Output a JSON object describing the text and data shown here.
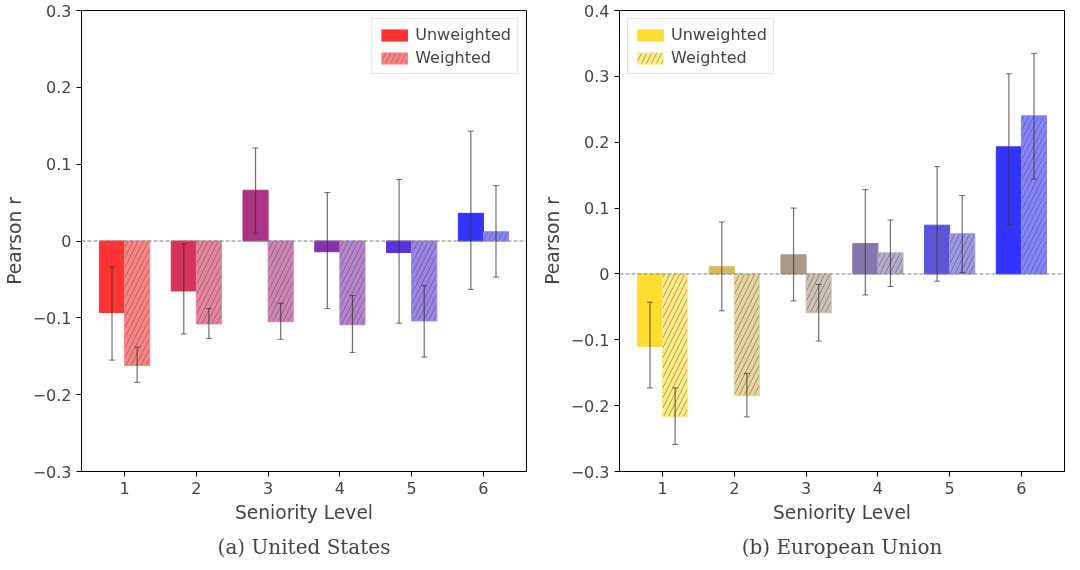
{
  "chart_data": [
    {
      "type": "bar",
      "xlabel": "Seniority Level",
      "ylabel": "Pearson r",
      "annotations": [
        "(a) United States"
      ],
      "categories": [
        "1",
        "2",
        "3",
        "4",
        "5",
        "6"
      ],
      "series": [
        {
          "name": "Unweighted",
          "colors": [
            "#ff3333",
            "#d6335c",
            "#ad3385",
            "#8533ad",
            "#5c33d6",
            "#3333ff"
          ],
          "values": [
            -0.093,
            -0.065,
            0.066,
            -0.014,
            -0.015,
            0.036
          ],
          "errors": [
            [
              -0.155,
              -0.034
            ],
            [
              -0.121,
              -0.004
            ],
            [
              0.01,
              0.121
            ],
            [
              -0.088,
              0.063
            ],
            [
              -0.107,
              0.08
            ],
            [
              -0.063,
              0.143
            ]
          ]
        },
        {
          "name": "Weighted",
          "colors": [
            "#ff8585",
            "#e6859d",
            "#ce85b6",
            "#b685ce",
            "#9d85e6",
            "#8585ff"
          ],
          "values": [
            -0.162,
            -0.108,
            -0.105,
            -0.109,
            -0.104,
            0.012
          ],
          "errors": [
            [
              -0.184,
              -0.138
            ],
            [
              -0.127,
              -0.088
            ],
            [
              -0.128,
              -0.081
            ],
            [
              -0.145,
              -0.071
            ],
            [
              -0.151,
              -0.058
            ],
            [
              -0.047,
              0.072
            ]
          ]
        }
      ],
      "ylim": [
        -0.3,
        0.3
      ],
      "yticks": [
        {
          "value": -0.3,
          "label": "−0.3"
        },
        {
          "value": -0.2,
          "label": "−0.2"
        },
        {
          "value": -0.1,
          "label": "−0.1"
        },
        0.0,
        0.1,
        0.2,
        0.3
      ],
      "ref_lines": [
        {
          "axis": "y",
          "value": 0,
          "color": "#808080",
          "line_style": "dashed"
        }
      ],
      "grid": false,
      "legend": "top right"
    },
    {
      "type": "bar",
      "xlabel": "Seniority Level",
      "ylabel": "Pearson r",
      "annotations": [
        "(b) European Union"
      ],
      "categories": [
        "1",
        "2",
        "3",
        "4",
        "5",
        "6"
      ],
      "series": [
        {
          "name": "Unweighted",
          "colors": [
            "#ffdd33",
            "#d6bb5c",
            "#ad9985",
            "#8577ad",
            "#5c55d6",
            "#3333ff"
          ],
          "values": [
            -0.11,
            0.011,
            0.029,
            0.046,
            0.074,
            0.193
          ],
          "errors": [
            [
              -0.173,
              -0.043
            ],
            [
              -0.056,
              0.079
            ],
            [
              -0.041,
              0.1
            ],
            [
              -0.032,
              0.128
            ],
            [
              -0.011,
              0.163
            ],
            [
              0.075,
              0.304
            ]
          ]
        },
        {
          "name": "Weighted",
          "colors": [
            "#ffeb85",
            "#e6d69d",
            "#cec2b6",
            "#b6adce",
            "#9d99e6",
            "#8585ff"
          ],
          "values": [
            -0.217,
            -0.185,
            -0.059,
            0.032,
            0.061,
            0.24
          ],
          "errors": [
            [
              -0.259,
              -0.173
            ],
            [
              -0.217,
              -0.151
            ],
            [
              -0.102,
              -0.016
            ],
            [
              -0.019,
              0.082
            ],
            [
              0.002,
              0.119
            ],
            [
              0.144,
              0.335
            ]
          ]
        }
      ],
      "ylim": [
        -0.3,
        0.4
      ],
      "yticks": [
        {
          "value": -0.3,
          "label": "−0.3"
        },
        {
          "value": -0.2,
          "label": "−0.2"
        },
        {
          "value": -0.1,
          "label": "−0.1"
        },
        0.0,
        0.1,
        0.2,
        0.3,
        0.4
      ],
      "ref_lines": [
        {
          "axis": "y",
          "value": 0,
          "color": "#808080",
          "line_style": "dashed"
        }
      ],
      "grid": false,
      "legend": "top left"
    }
  ]
}
